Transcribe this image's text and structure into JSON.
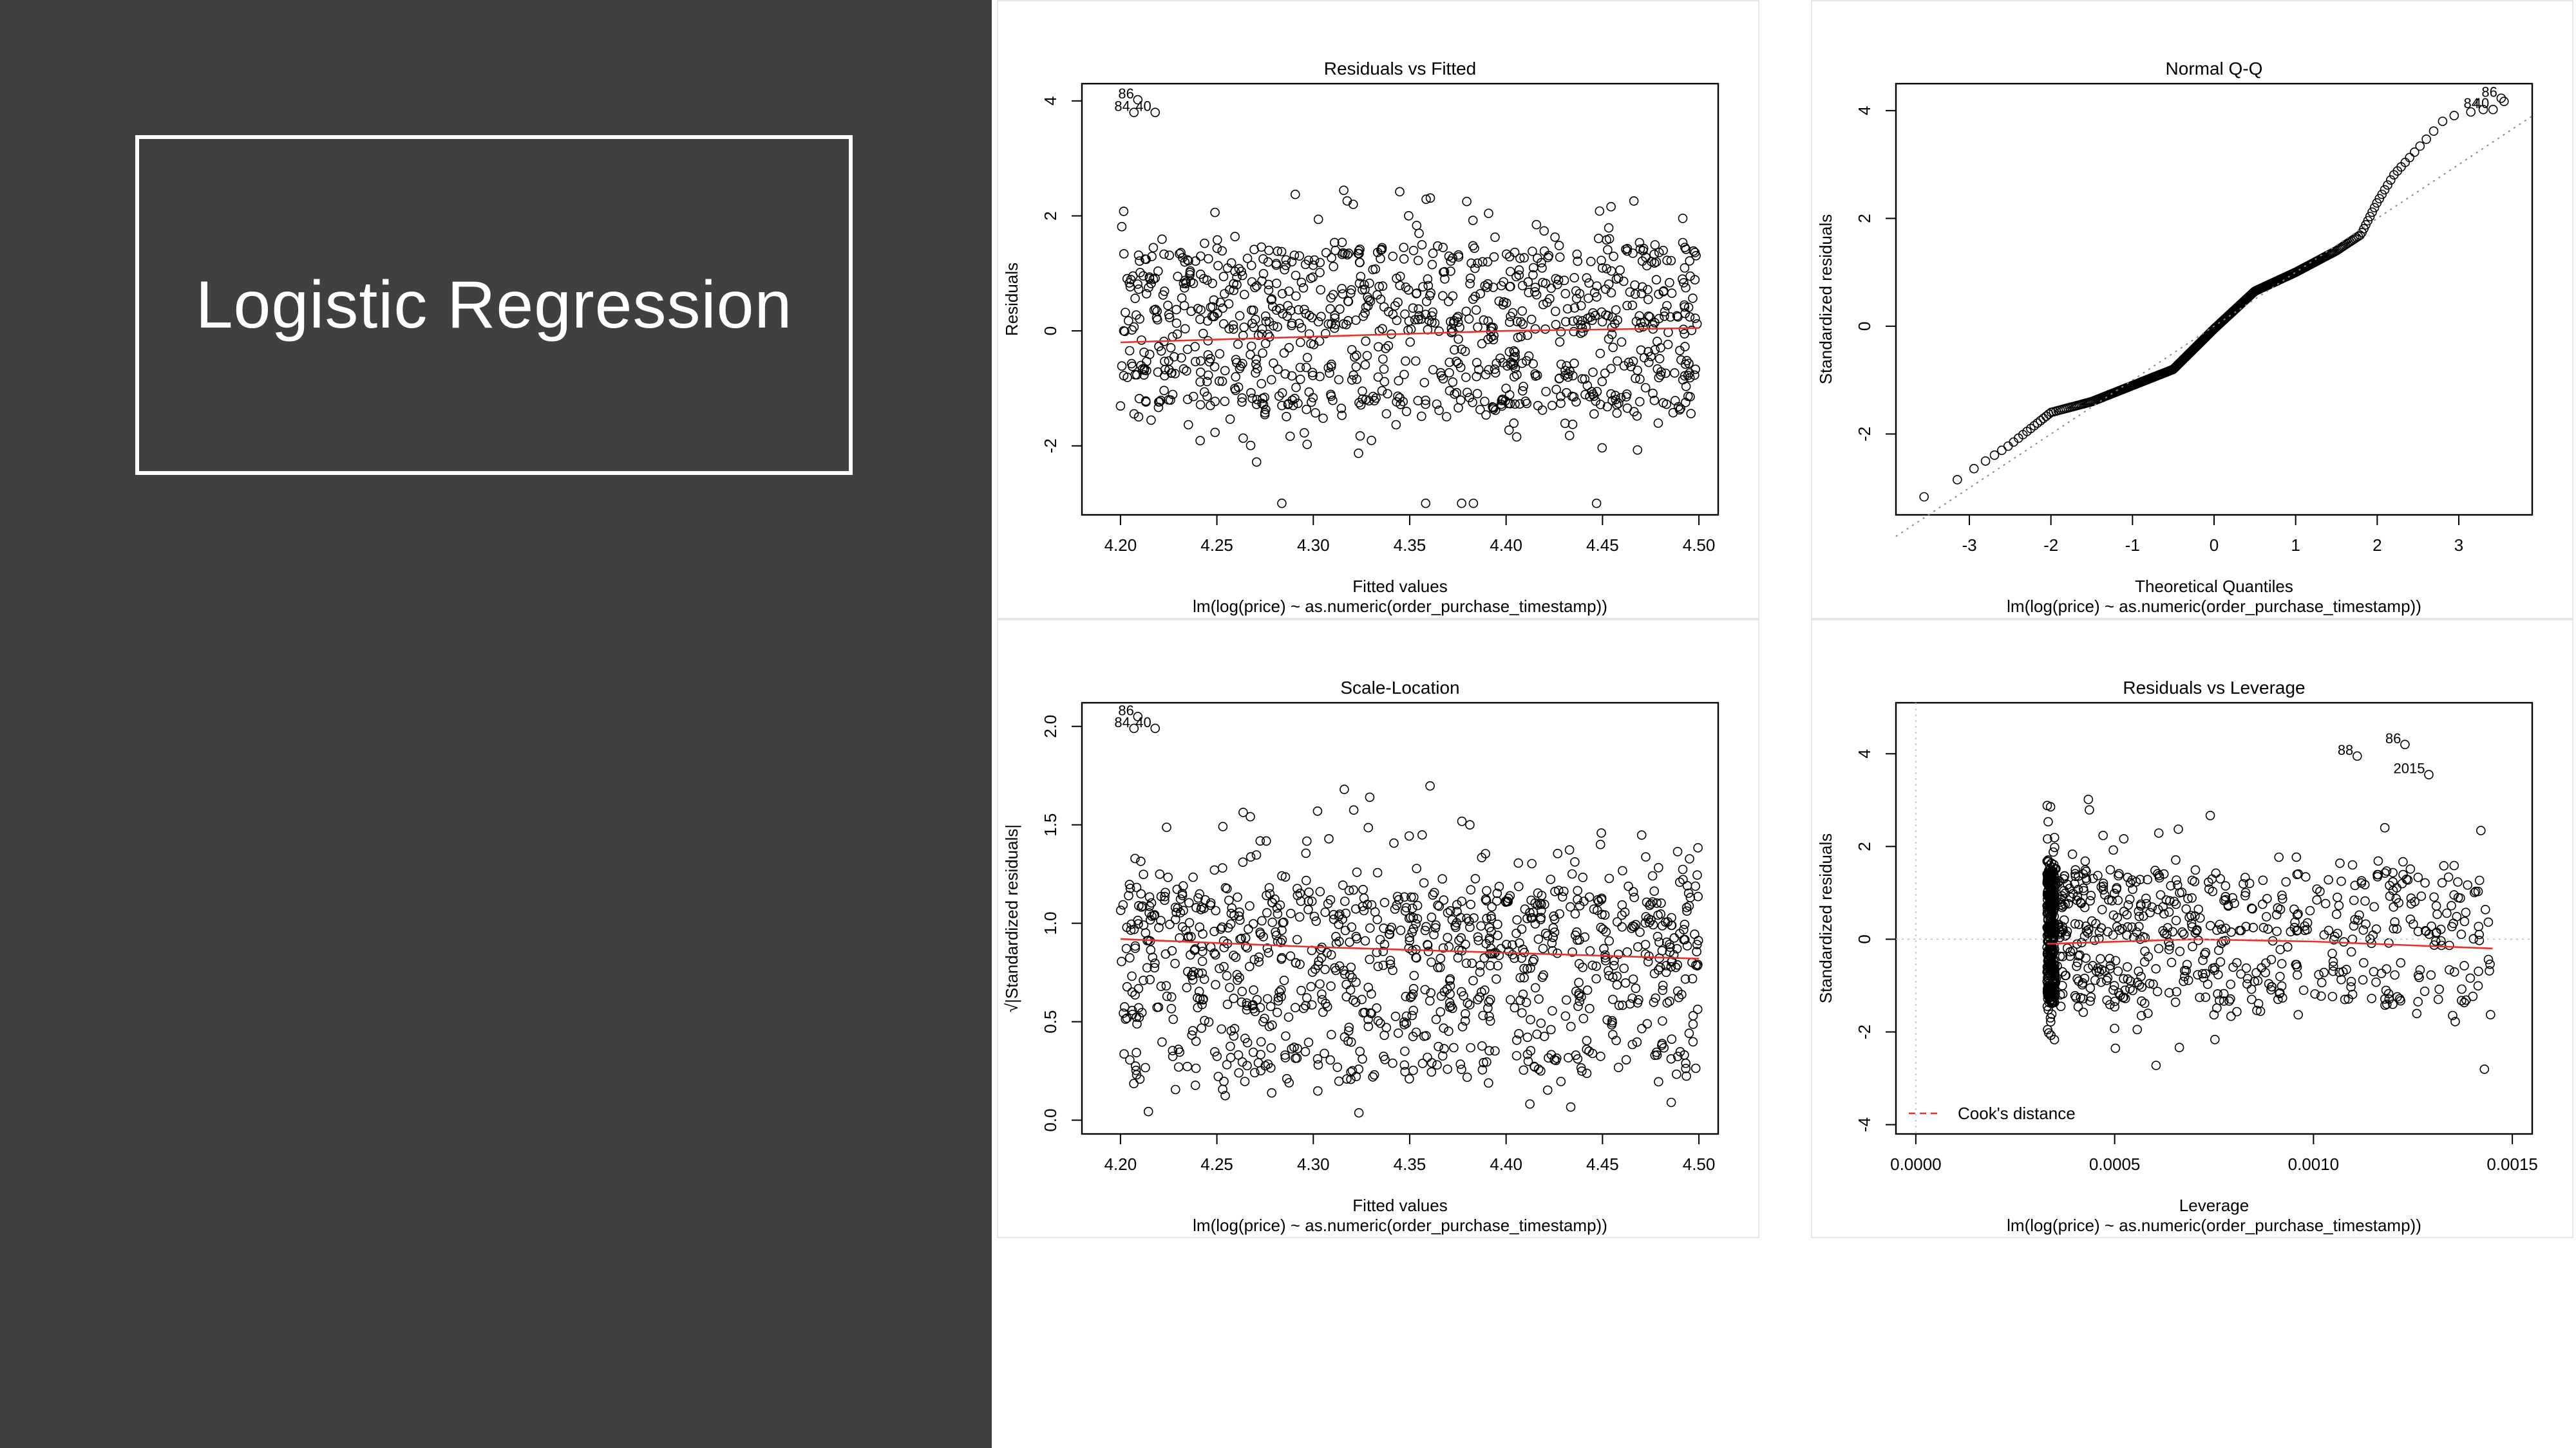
{
  "slide": {
    "title": "Logistic Regression",
    "background_color": "#404040",
    "title_color": "#ffffff"
  },
  "chart_data": [
    {
      "id": "residuals-vs-fitted",
      "type": "scatter",
      "title": "Residuals vs Fitted",
      "xlabel": "Fitted values",
      "ylabel": "Residuals",
      "subtitle": "lm(log(price) ~ as.numeric(order_purchase_timestamp))",
      "xlim": [
        4.18,
        4.51
      ],
      "ylim": [
        -3.2,
        4.3
      ],
      "xticks": [
        "4.20",
        "4.25",
        "4.30",
        "4.35",
        "4.40",
        "4.45",
        "4.50"
      ],
      "xtick_values": [
        4.2,
        4.25,
        4.3,
        4.35,
        4.4,
        4.45,
        4.5
      ],
      "yticks": [
        "-2",
        "0",
        "2",
        "4"
      ],
      "ytick_values": [
        -2,
        0,
        2,
        4
      ],
      "point_color": "#000000",
      "smoother_color": "#e8322c",
      "smoother": {
        "x": [
          4.2,
          4.3,
          4.4,
          4.5
        ],
        "y": [
          -0.2,
          -0.1,
          0.0,
          0.05
        ]
      },
      "labeled_points": [
        {
          "label": "86",
          "x": 4.209,
          "y": 4.02
        },
        {
          "label": "84",
          "x": 4.207,
          "y": 3.8
        },
        {
          "label": "40",
          "x": 4.218,
          "y": 3.8
        }
      ],
      "band_centers": [
        -1.2,
        -0.7,
        0.2,
        0.8,
        1.3
      ],
      "point_count": 1000,
      "point_spread": "residuals mostly between -2 and 3.5, fitted between 4.20 and 4.50"
    },
    {
      "id": "normal-qq",
      "type": "scatter",
      "title": "Normal Q-Q",
      "xlabel": "Theoretical Quantiles",
      "ylabel": "Standardized residuals",
      "subtitle": "lm(log(price) ~ as.numeric(order_purchase_timestamp))",
      "xlim": [
        -3.9,
        3.9
      ],
      "ylim": [
        -3.5,
        4.5
      ],
      "xticks": [
        "-3",
        "-2",
        "-1",
        "0",
        "1",
        "2",
        "3"
      ],
      "xtick_values": [
        -3,
        -2,
        -1,
        0,
        1,
        2,
        3
      ],
      "yticks": [
        "-2",
        "0",
        "2",
        "4"
      ],
      "ytick_values": [
        -2,
        0,
        2,
        4
      ],
      "point_color": "#000000",
      "reference_line": {
        "x": [
          -3.9,
          3.9
        ],
        "y": [
          -3.9,
          3.9
        ]
      },
      "curve": {
        "x": [
          -3.6,
          -3.2,
          -2.8,
          -2.5,
          -2.0,
          -1.5,
          -1.0,
          -0.5,
          0.0,
          0.5,
          1.0,
          1.5,
          1.8,
          2.0,
          2.2,
          2.5,
          2.8,
          3.0,
          3.3,
          3.6
        ],
        "y": [
          -3.2,
          -2.9,
          -2.5,
          -2.2,
          -1.6,
          -1.4,
          -1.1,
          -0.8,
          -0.05,
          0.65,
          1.0,
          1.4,
          1.7,
          2.3,
          2.8,
          3.3,
          3.8,
          3.95,
          4.0,
          4.2
        ]
      },
      "labeled_points": [
        {
          "label": "86",
          "x": 3.52,
          "y": 4.23
        },
        {
          "label": "84",
          "x": 3.3,
          "y": 4.02
        },
        {
          "label": "40",
          "x": 3.42,
          "y": 4.02
        }
      ]
    },
    {
      "id": "scale-location",
      "type": "scatter",
      "title": "Scale-Location",
      "xlabel": "Fitted values",
      "ylabel": "√|Standardized residuals|",
      "subtitle": "lm(log(price) ~ as.numeric(order_purchase_timestamp))",
      "xlim": [
        4.18,
        4.51
      ],
      "ylim": [
        -0.07,
        2.12
      ],
      "xticks": [
        "4.20",
        "4.25",
        "4.30",
        "4.35",
        "4.40",
        "4.45",
        "4.50"
      ],
      "xtick_values": [
        4.2,
        4.25,
        4.3,
        4.35,
        4.4,
        4.45,
        4.5
      ],
      "yticks": [
        "0.0",
        "0.5",
        "1.0",
        "1.5",
        "2.0"
      ],
      "ytick_values": [
        0,
        0.5,
        1,
        1.5,
        2
      ],
      "point_color": "#000000",
      "smoother_color": "#e8322c",
      "smoother": {
        "x": [
          4.2,
          4.3,
          4.4,
          4.5
        ],
        "y": [
          0.92,
          0.88,
          0.85,
          0.82
        ]
      },
      "labeled_points": [
        {
          "label": "86",
          "x": 4.209,
          "y": 2.05
        },
        {
          "label": "84",
          "x": 4.207,
          "y": 1.99
        },
        {
          "label": "40",
          "x": 4.218,
          "y": 1.99
        }
      ],
      "band_centers": [
        0.3,
        0.6,
        0.85,
        1.0,
        1.1
      ],
      "point_count": 1000,
      "point_spread": "values mostly between 0.05 and 1.9, fitted between 4.20 and 4.50"
    },
    {
      "id": "residuals-vs-leverage",
      "type": "scatter",
      "title": "Residuals vs Leverage",
      "xlabel": "Leverage",
      "ylabel": "Standardized residuals",
      "subtitle": "lm(log(price) ~ as.numeric(order_purchase_timestamp))",
      "xlim": [
        -5e-05,
        0.00155
      ],
      "ylim": [
        -4.2,
        5.1
      ],
      "xticks": [
        "0.0000",
        "0.0005",
        "0.0010",
        "0.0015"
      ],
      "xtick_values": [
        0,
        0.0005,
        0.001,
        0.0015
      ],
      "yticks": [
        "-4",
        "-2",
        "0",
        "2",
        "4"
      ],
      "ytick_values": [
        -4,
        -2,
        0,
        2,
        4
      ],
      "point_color": "#000000",
      "smoother_color": "#e8322c",
      "smoother": {
        "x": [
          0.00033,
          0.0007,
          0.001,
          0.00145
        ],
        "y": [
          -0.1,
          0.0,
          -0.05,
          -0.2
        ]
      },
      "labeled_points": [
        {
          "label": "86",
          "x": 0.00123,
          "y": 4.2
        },
        {
          "label": "88",
          "x": 0.00111,
          "y": 3.95
        },
        {
          "label": "2015",
          "x": 0.00129,
          "y": 3.55
        }
      ],
      "legend": {
        "label": "Cook's distance",
        "position": "bottom-left",
        "color": "#e8322c"
      },
      "band_centers": [
        -1.2,
        -0.7,
        0.2,
        0.8,
        1.3
      ],
      "point_count": 1000,
      "point_spread": "leverage between 0.00033 and 0.00145, residuals mostly between -3 and 4"
    }
  ]
}
